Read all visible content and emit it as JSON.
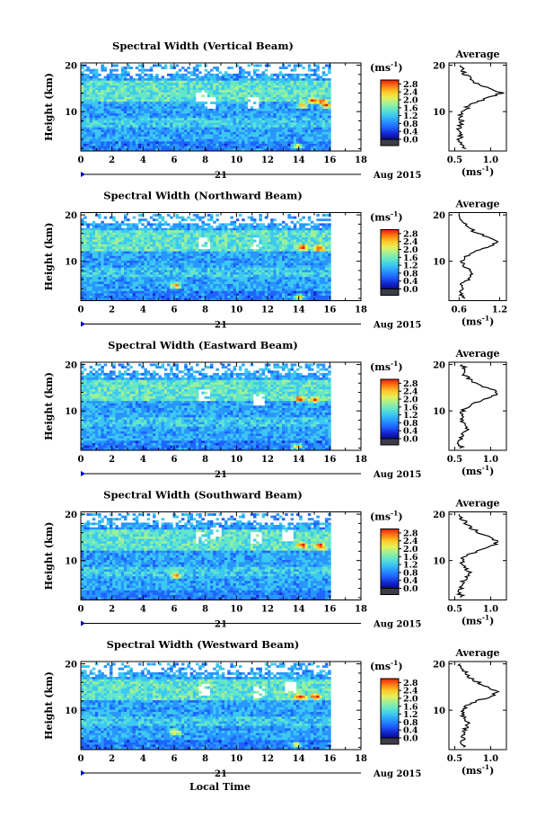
{
  "figure": {
    "xlabel": "Local Time",
    "date_label": "21",
    "month_label": "Aug 2015",
    "colorbar_unit": "(ms",
    "colorbar_unit_exp": "-1",
    "colorbar_unit_close": ")",
    "colors": {
      "colormap": [
        "#0a0a8c",
        "#1428d2",
        "#1e64ff",
        "#2896ff",
        "#3cc8f0",
        "#64e6c8",
        "#a0f096",
        "#e6f05a",
        "#ffc828",
        "#ff7814",
        "#e61e0a"
      ],
      "low_extension": "#3c3c46",
      "avg_line": "#000000",
      "missing": "#ffffff"
    }
  },
  "chart_data": [
    {
      "type": "heatmap",
      "title": "Spectral Width (Vertical Beam)",
      "xlabel": "Local Time",
      "ylabel": "Height (km)",
      "x_ticks": [
        0,
        2,
        4,
        6,
        8,
        10,
        12,
        14,
        16,
        18
      ],
      "y_ticks": [
        10,
        20
      ],
      "xlim": [
        0,
        18
      ],
      "ylim": [
        1.5,
        20.5
      ],
      "data_xrange": [
        0,
        16
      ],
      "colorbar_ticks": [
        "0.0",
        "0.4",
        "0.8",
        "1.2",
        "1.6",
        "2.0",
        "2.4",
        "2.8"
      ],
      "clim": [
        0,
        2.8
      ],
      "hotspots": [
        [
          14.1,
          11.5
        ],
        [
          14.8,
          12.5
        ],
        [
          15.4,
          12.3
        ],
        [
          15.7,
          11.5
        ],
        [
          13.8,
          2.8
        ]
      ],
      "gaps": [
        [
          7.6,
          13.5
        ],
        [
          8.2,
          12.0
        ],
        [
          11.0,
          12.0
        ]
      ],
      "average": {
        "title": "Average",
        "xlabel": "(ms",
        "xlabel_exp": "-1",
        "x_ticks": [
          "0.5",
          "1.0"
        ],
        "x_tick_values": [
          0.5,
          1.0
        ],
        "xlim": [
          0.42,
          1.22
        ],
        "ylim": [
          1.5,
          20.5
        ],
        "height": [
          2,
          3,
          4,
          5,
          6,
          7,
          8,
          9,
          10,
          11,
          12,
          13,
          14,
          15,
          16,
          17,
          18,
          19,
          20
        ],
        "width": [
          0.65,
          0.58,
          0.55,
          0.6,
          0.56,
          0.57,
          0.6,
          0.58,
          0.63,
          0.68,
          0.78,
          0.97,
          1.15,
          0.98,
          0.82,
          0.72,
          0.65,
          0.6,
          0.58
        ]
      }
    },
    {
      "type": "heatmap",
      "title": "Spectral Width (Northward Beam)",
      "xlabel": "Local Time",
      "ylabel": "Height (km)",
      "x_ticks": [
        0,
        2,
        4,
        6,
        8,
        10,
        12,
        14,
        16,
        18
      ],
      "y_ticks": [
        10,
        20
      ],
      "xlim": [
        0,
        18
      ],
      "ylim": [
        1.5,
        20.5
      ],
      "data_xrange": [
        0,
        16
      ],
      "colorbar_ticks": [
        "0.0",
        "0.4",
        "0.8",
        "1.2",
        "1.6",
        "2.0",
        "2.4",
        "2.8"
      ],
      "clim": [
        0,
        2.8
      ],
      "hotspots": [
        [
          14.2,
          13.2
        ],
        [
          15.2,
          13.0
        ],
        [
          6.0,
          5.0
        ],
        [
          13.9,
          2.5
        ]
      ],
      "gaps": [
        [
          7.8,
          14.2
        ],
        [
          11.2,
          14.0
        ]
      ],
      "average": {
        "title": "Average",
        "xlabel": "(ms",
        "xlabel_exp": "-1",
        "x_ticks": [
          "0.6",
          "1.2"
        ],
        "x_tick_values": [
          0.6,
          1.2
        ],
        "xlim": [
          0.45,
          1.3
        ],
        "ylim": [
          1.5,
          20.5
        ],
        "height": [
          2,
          3,
          4,
          5,
          6,
          7,
          8,
          9,
          10,
          11,
          12,
          13,
          14,
          15,
          16,
          17,
          18,
          19,
          20
        ],
        "width": [
          0.7,
          0.62,
          0.66,
          0.6,
          0.72,
          0.8,
          0.76,
          0.68,
          0.64,
          0.7,
          0.82,
          1.0,
          1.18,
          1.06,
          0.88,
          0.76,
          0.7,
          0.62,
          0.6
        ]
      }
    },
    {
      "type": "heatmap",
      "title": "Spectral Width (Eastward Beam)",
      "xlabel": "Local Time",
      "ylabel": "Height (km)",
      "x_ticks": [
        0,
        2,
        4,
        6,
        8,
        10,
        12,
        14,
        16,
        18
      ],
      "y_ticks": [
        10,
        20
      ],
      "xlim": [
        0,
        18
      ],
      "ylim": [
        1.5,
        20.5
      ],
      "data_xrange": [
        0,
        16
      ],
      "colorbar_ticks": [
        "0.0",
        "0.4",
        "0.8",
        "1.2",
        "1.6",
        "2.0",
        "2.4",
        "2.8"
      ],
      "clim": [
        0,
        2.8
      ],
      "hotspots": [
        [
          14.0,
          12.8
        ],
        [
          14.9,
          12.5
        ],
        [
          13.8,
          2.5
        ]
      ],
      "gaps": [
        [
          7.8,
          13.8
        ],
        [
          11.3,
          12.5
        ]
      ],
      "average": {
        "title": "Average",
        "xlabel": "(ms",
        "xlabel_exp": "-1",
        "x_ticks": [
          "0.5",
          "1.0"
        ],
        "x_tick_values": [
          0.5,
          1.0
        ],
        "xlim": [
          0.42,
          1.22
        ],
        "ylim": [
          1.5,
          20.5
        ],
        "height": [
          2,
          3,
          4,
          5,
          6,
          7,
          8,
          9,
          10,
          11,
          12,
          13,
          14,
          15,
          16,
          17,
          18,
          19,
          20
        ],
        "width": [
          0.6,
          0.55,
          0.58,
          0.62,
          0.7,
          0.66,
          0.6,
          0.58,
          0.62,
          0.68,
          0.82,
          1.02,
          1.1,
          0.95,
          0.8,
          0.7,
          0.62,
          0.66,
          0.6
        ]
      }
    },
    {
      "type": "heatmap",
      "title": "Spectral Width (Southward Beam)",
      "xlabel": "Local Time",
      "ylabel": "Height (km)",
      "x_ticks": [
        0,
        2,
        4,
        6,
        8,
        10,
        12,
        14,
        16,
        18
      ],
      "y_ticks": [
        10,
        20
      ],
      "xlim": [
        0,
        18
      ],
      "ylim": [
        1.5,
        20.5
      ],
      "data_xrange": [
        0,
        16
      ],
      "colorbar_ticks": [
        "0.0",
        "0.4",
        "0.8",
        "1.2",
        "1.6",
        "2.0",
        "2.4",
        "2.8"
      ],
      "clim": [
        0,
        2.8
      ],
      "hotspots": [
        [
          14.1,
          13.5
        ],
        [
          15.3,
          13.3
        ],
        [
          6.0,
          6.8
        ]
      ],
      "gaps": [
        [
          7.6,
          15.0
        ],
        [
          8.6,
          16.0
        ],
        [
          11.2,
          15.0
        ],
        [
          13.2,
          15.5
        ]
      ],
      "average": {
        "title": "Average",
        "xlabel": "(ms",
        "xlabel_exp": "-1",
        "x_ticks": [
          "0.5",
          "1.0"
        ],
        "x_tick_values": [
          0.5,
          1.0
        ],
        "xlim": [
          0.42,
          1.22
        ],
        "ylim": [
          1.5,
          20.5
        ],
        "height": [
          2,
          3,
          4,
          5,
          6,
          7,
          8,
          9,
          10,
          11,
          12,
          13,
          14,
          15,
          16,
          17,
          18,
          19,
          20
        ],
        "width": [
          0.62,
          0.56,
          0.6,
          0.58,
          0.64,
          0.72,
          0.68,
          0.62,
          0.6,
          0.66,
          0.8,
          0.98,
          1.12,
          1.0,
          0.85,
          0.74,
          0.66,
          0.6,
          0.56
        ]
      }
    },
    {
      "type": "heatmap",
      "title": "Spectral Width (Westward Beam)",
      "xlabel": "Local Time",
      "ylabel": "Height (km)",
      "x_ticks": [
        0,
        2,
        4,
        6,
        8,
        10,
        12,
        14,
        16,
        18
      ],
      "y_ticks": [
        10,
        20
      ],
      "xlim": [
        0,
        18
      ],
      "ylim": [
        1.5,
        20.5
      ],
      "data_xrange": [
        0,
        16
      ],
      "colorbar_ticks": [
        "0.0",
        "0.4",
        "0.8",
        "1.2",
        "1.6",
        "2.0",
        "2.4",
        "2.8"
      ],
      "clim": [
        0,
        2.8
      ],
      "hotspots": [
        [
          14.0,
          13.0
        ],
        [
          15.0,
          13.2
        ],
        [
          6.0,
          5.5
        ],
        [
          13.8,
          2.8
        ]
      ],
      "gaps": [
        [
          7.8,
          14.5
        ],
        [
          11.3,
          14.0
        ],
        [
          13.4,
          15.0
        ]
      ],
      "average": {
        "title": "Average",
        "xlabel": "(ms",
        "xlabel_exp": "-1",
        "x_ticks": [
          "0.5",
          "1.0"
        ],
        "x_tick_values": [
          0.5,
          1.0
        ],
        "xlim": [
          0.42,
          1.22
        ],
        "ylim": [
          1.5,
          20.5
        ],
        "height": [
          2,
          3,
          4,
          5,
          6,
          7,
          8,
          9,
          10,
          11,
          12,
          13,
          14,
          15,
          16,
          17,
          18,
          19,
          20
        ],
        "width": [
          0.64,
          0.58,
          0.62,
          0.6,
          0.66,
          0.7,
          0.64,
          0.6,
          0.62,
          0.68,
          0.82,
          1.0,
          1.08,
          0.95,
          0.82,
          0.72,
          0.65,
          0.6,
          0.58
        ]
      }
    }
  ]
}
